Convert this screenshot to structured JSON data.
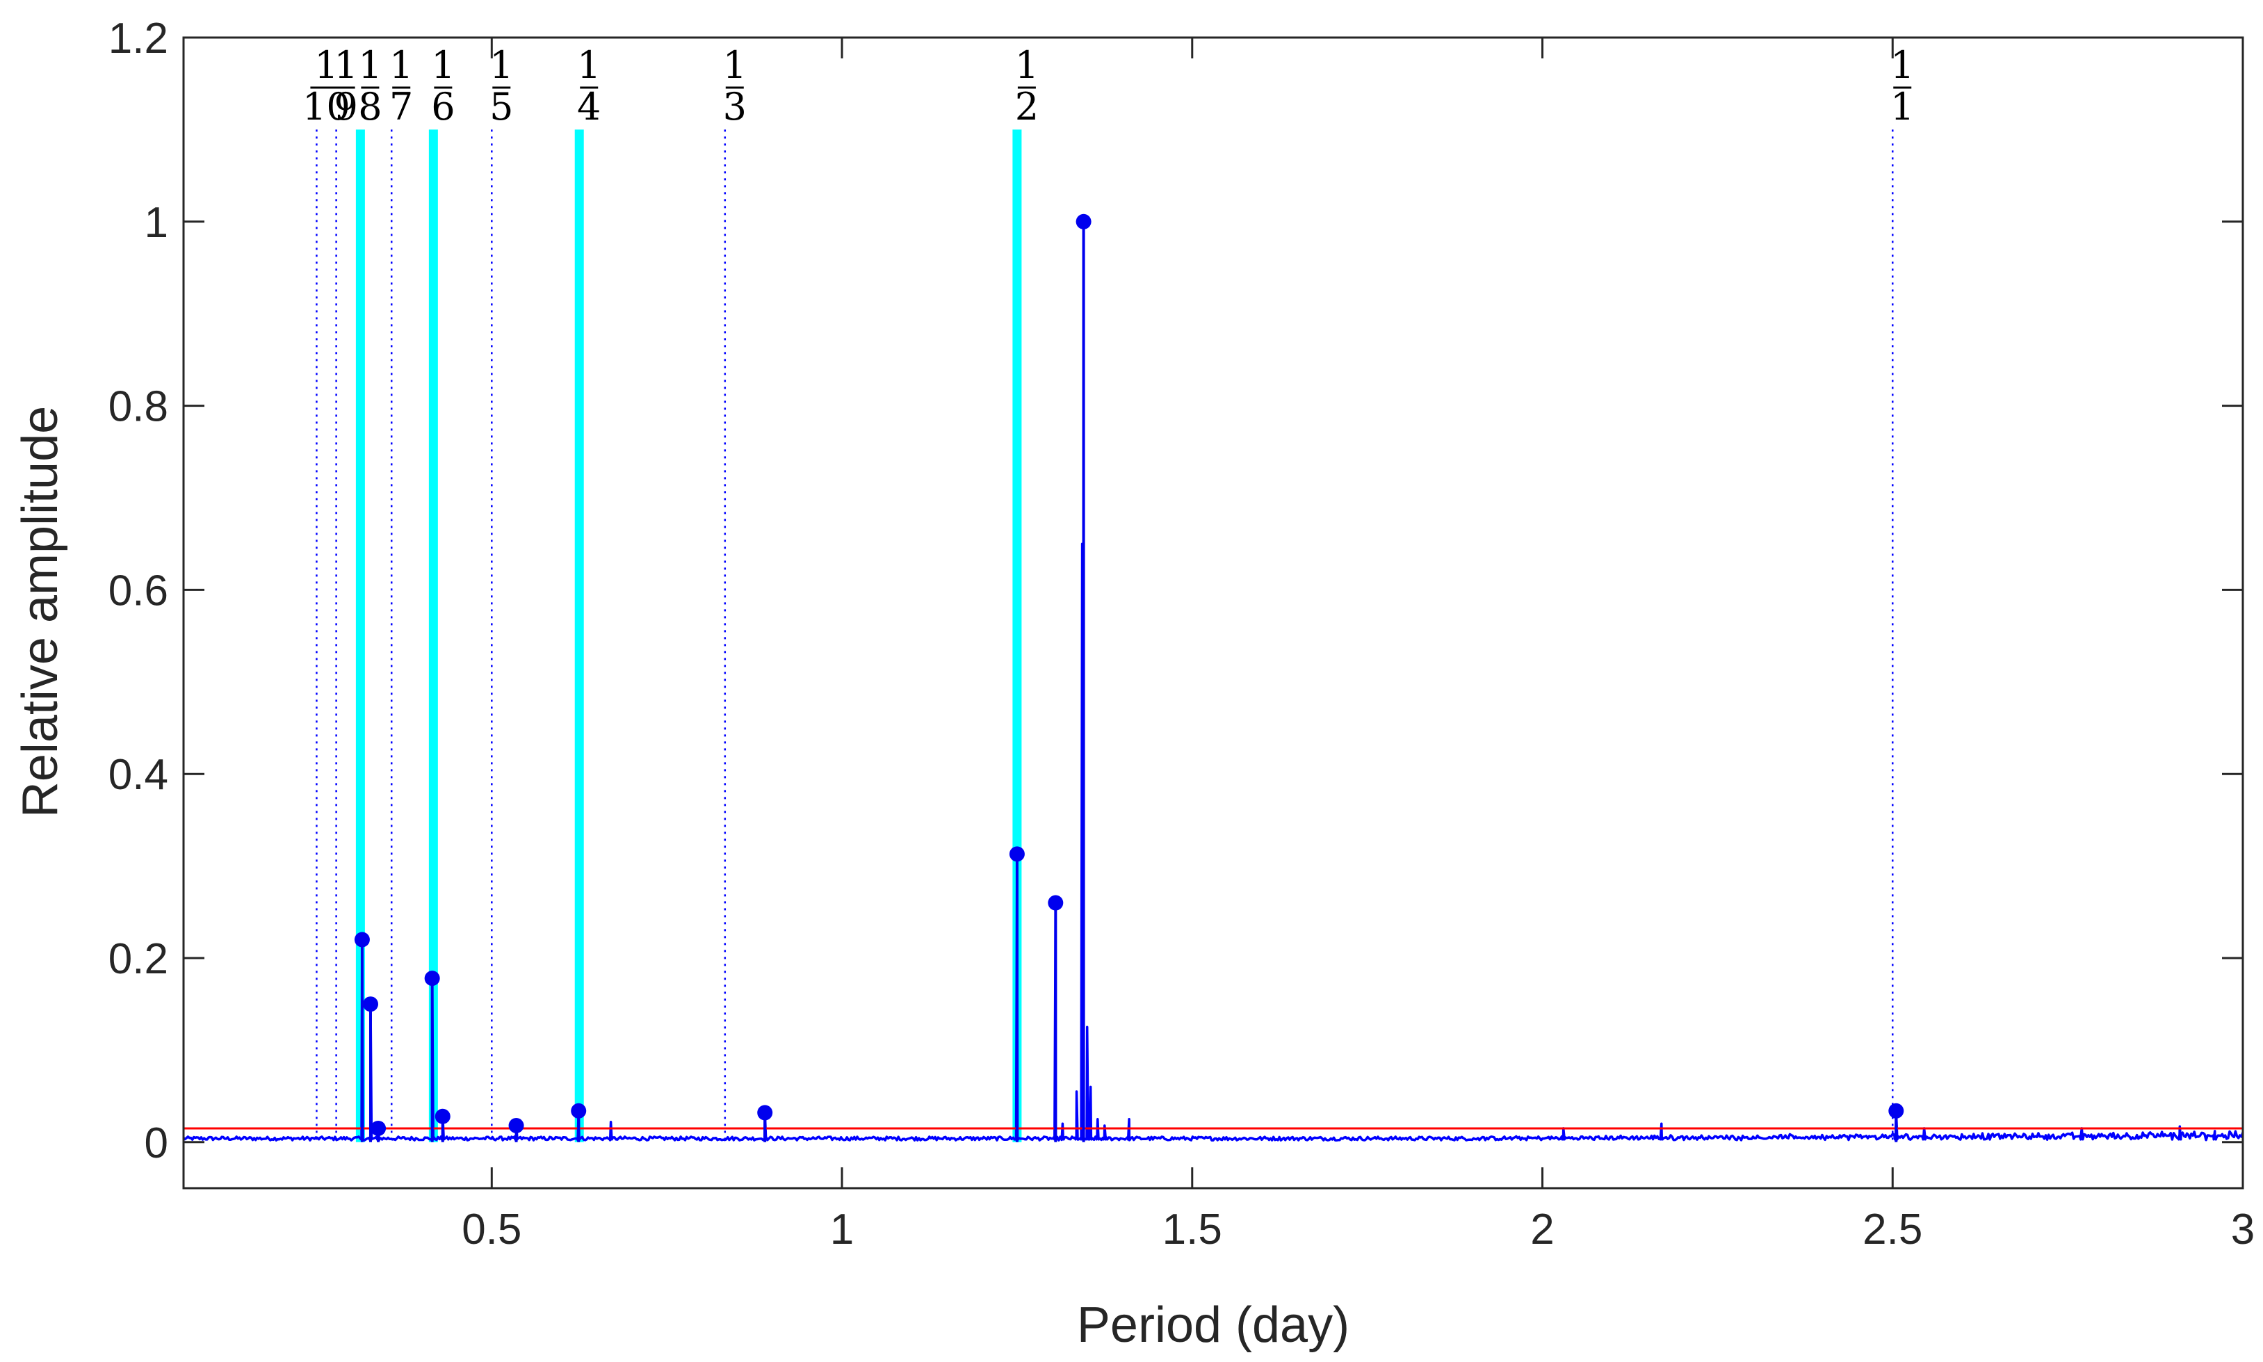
{
  "chart_data": {
    "type": "line",
    "xlabel": "Period (day)",
    "ylabel": "Relative  amplitude",
    "xlim": [
      0.06,
      3.0
    ],
    "ylim": [
      -0.05,
      1.2
    ],
    "x_ticks": [
      0.5,
      1,
      1.5,
      2,
      2.5,
      3
    ],
    "x_tick_labels": [
      "0.5",
      "1",
      "1.5",
      "2",
      "2.5",
      "3"
    ],
    "y_ticks": [
      0,
      0.2,
      0.4,
      0.6,
      0.8,
      1,
      1.2
    ],
    "y_tick_labels": [
      "0",
      "0.2",
      "0.4",
      "0.6",
      "0.8",
      "1",
      "1.2"
    ],
    "grid": false,
    "colors": {
      "spectrum": "#0000ff",
      "peaks": "#0000ee",
      "threshold": "#ff0000",
      "harmonic_highlight": "#00ffff",
      "harmonic_dotted": "#0000ff",
      "axes": "#262626"
    },
    "threshold": 0.015,
    "harmonic_lines": [
      {
        "period": 0.25,
        "num": "1",
        "den": "10",
        "style": "dotted"
      },
      {
        "period": 0.278,
        "num": "1",
        "den": "9",
        "style": "dotted"
      },
      {
        "period": 0.3125,
        "num": "1",
        "den": "8",
        "style": "highlight"
      },
      {
        "period": 0.357,
        "num": "1",
        "den": "7",
        "style": "dotted"
      },
      {
        "period": 0.4167,
        "num": "1",
        "den": "6",
        "style": "highlight"
      },
      {
        "period": 0.5,
        "num": "1",
        "den": "5",
        "style": "dotted"
      },
      {
        "period": 0.625,
        "num": "1",
        "den": "4",
        "style": "highlight"
      },
      {
        "period": 0.833,
        "num": "1",
        "den": "3",
        "style": "dotted"
      },
      {
        "period": 1.25,
        "num": "1",
        "den": "2",
        "style": "highlight"
      },
      {
        "period": 2.5,
        "num": "1",
        "den": "1",
        "style": "dotted"
      }
    ],
    "harmonic_line_top": 1.1,
    "peaks": [
      {
        "x": 0.315,
        "y": 0.22
      },
      {
        "x": 0.327,
        "y": 0.15
      },
      {
        "x": 0.338,
        "y": 0.015
      },
      {
        "x": 0.415,
        "y": 0.178
      },
      {
        "x": 0.43,
        "y": 0.028
      },
      {
        "x": 0.535,
        "y": 0.018
      },
      {
        "x": 0.624,
        "y": 0.034
      },
      {
        "x": 0.89,
        "y": 0.032
      },
      {
        "x": 1.25,
        "y": 0.313
      },
      {
        "x": 1.305,
        "y": 0.26
      },
      {
        "x": 1.345,
        "y": 1.0
      },
      {
        "x": 2.505,
        "y": 0.034
      }
    ],
    "minor_spikes": [
      {
        "x": 0.67,
        "y": 0.022
      },
      {
        "x": 1.315,
        "y": 0.02
      },
      {
        "x": 1.335,
        "y": 0.055
      },
      {
        "x": 1.343,
        "y": 0.65
      },
      {
        "x": 1.35,
        "y": 0.125
      },
      {
        "x": 1.355,
        "y": 0.06
      },
      {
        "x": 1.365,
        "y": 0.025
      },
      {
        "x": 1.375,
        "y": 0.018
      },
      {
        "x": 1.41,
        "y": 0.025
      },
      {
        "x": 2.03,
        "y": 0.015
      },
      {
        "x": 2.17,
        "y": 0.02
      },
      {
        "x": 2.545,
        "y": 0.015
      },
      {
        "x": 2.77,
        "y": 0.015
      },
      {
        "x": 2.91,
        "y": 0.017
      },
      {
        "x": 2.96,
        "y": 0.012
      }
    ]
  }
}
